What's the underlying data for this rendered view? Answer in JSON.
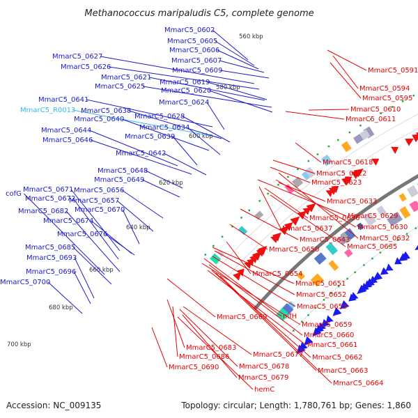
{
  "title": "Methanococcus maripaludis C5, complete genome",
  "footer": {
    "accession": "Accession: NC_009135",
    "summary": "Topology: circular; Length: 1,780,761 bp; Genes: 1,860"
  },
  "colors": {
    "forward_label": "#1a1acc",
    "reverse_label": "#e60000",
    "rna_label": "#33bbee",
    "backbone": "#777777",
    "forward_arrow": "#1a1aee",
    "reverse_arrow": "#ee1111"
  },
  "scale_ticks": [
    "560 kbp",
    "580 kbp",
    "600 kbp",
    "620 kbp",
    "640 kbp",
    "660 kbp",
    "680 kbp",
    "700 kbp"
  ],
  "forward_labels": [
    "MmarC5_0602",
    "MmarC5_0605",
    "MmarC5_0606",
    "MmarC5_0607",
    "MmarC5_0609",
    "MmarC5_0627",
    "MmarC5_0626",
    "MmarC5_0621",
    "MmarC5_0619",
    "MmarC5_0625",
    "MmarC5_0620",
    "MmarC5_0641",
    "MmarC5_0624",
    "MmarC5_R0013",
    "MmarC5_0638",
    "MmarC5_0628",
    "MmarC5_0640",
    "MmarC5_0634",
    "MmarC5_0644",
    "MmarC5_0639",
    "MmarC5_0646",
    "MmarC5_0642",
    "MmarC5_0648",
    "MmarC5_0649",
    "MmarC5_0671",
    "cofG",
    "MmarC5_0656",
    "MmarC5_0672",
    "MmarC5_0657",
    "MmarC5_0682",
    "MmarC5_0670",
    "MmarC5_0674",
    "MmarC5_0676",
    "MmarC5_0685",
    "MmarC5_0693",
    "MmarC5_0696",
    "MmarC5_0700"
  ],
  "reverse_labels": [
    "MmarC5_0591",
    "MmarC5_0594",
    "MmarC5_0595",
    "MmarC5_0610",
    "MmarC5_0611",
    "MmarC5_0618",
    "MmarC5_0622",
    "MmarC5_0623",
    "MmarC5_0633",
    "MmarC5_0629",
    "MmarC5_0636",
    "MmarC5_0630",
    "MmarC5_0637",
    "MmarC5_0632",
    "MmarC5_0643",
    "MmarC5_0635",
    "MmarC5_0650",
    "MmarC5_0654",
    "MmarC5_0651",
    "MmarC5_0652",
    "MmarC5_0653",
    "nifH",
    "MmarC5_0669",
    "MmarC5_0659",
    "MmarC5_0660",
    "MmarC5_0661",
    "MmarC5_0683",
    "MmarC5_0677",
    "MmarC5_0686",
    "MmarC5_0662",
    "MmarC5_0678",
    "MmarC5_0690",
    "MmarC5_0663",
    "MmarC5_0679",
    "MmarC5_0664",
    "hemC"
  ]
}
